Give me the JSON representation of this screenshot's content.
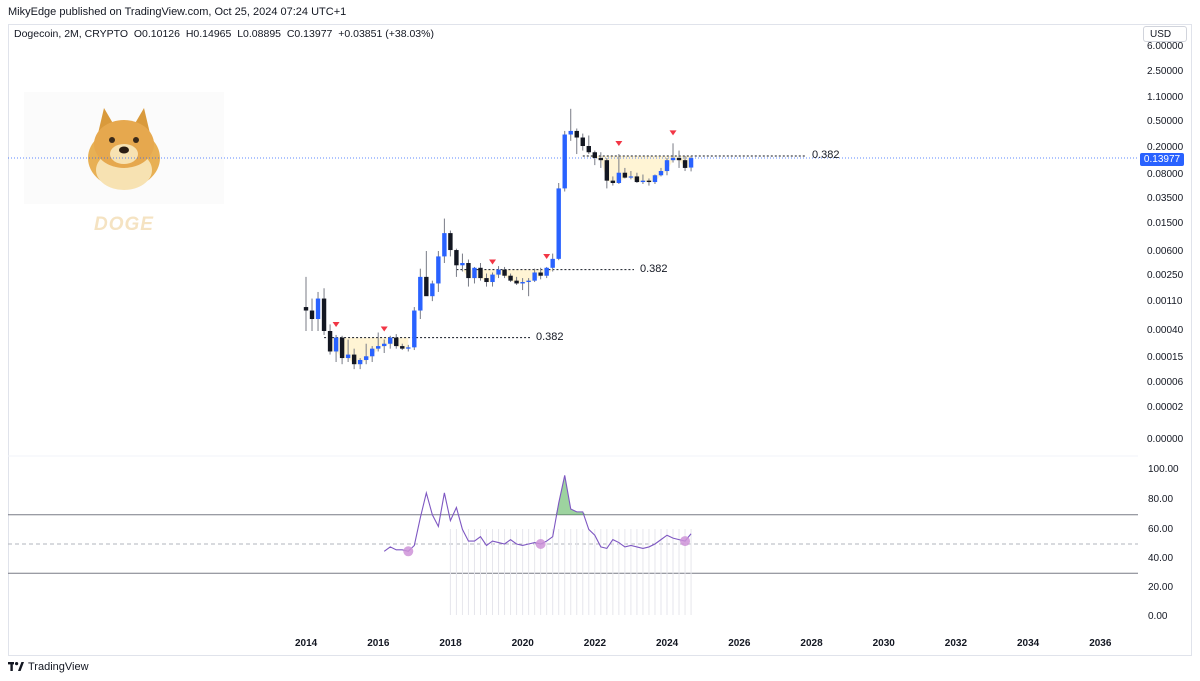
{
  "header": {
    "published": "MikyEdge published on TradingView.com, Oct 25, 2024 07:24 UTC+1"
  },
  "legend": {
    "symbol": "Dogecoin, 2M, CRYPTO",
    "open": "O0.10126",
    "high": "H0.14965",
    "low": "L0.08895",
    "close": "C0.13977",
    "change": "+0.03851 (+38.03%)"
  },
  "currency_button": "USD",
  "watermark": {
    "label": "DOGE"
  },
  "last_price_tag": "0.13977",
  "footer": {
    "brand": "TradingView"
  },
  "colors": {
    "up_candle": "#2962ff",
    "down_candle": "#131722",
    "fib_fill": "#fff2cc",
    "rsi_line": "#7e57c2",
    "marker": "#f23645",
    "circle": "#ce93d8",
    "overbought_fill": "#4caf50"
  },
  "chart_data": [
    {
      "type": "candlestick",
      "title": "",
      "scale": "log",
      "x_tick_labels": [
        "2014",
        "2016",
        "2018",
        "2020",
        "2022",
        "2024",
        "2026",
        "2028",
        "2030",
        "2032",
        "2034",
        "2036"
      ],
      "y_tick_labels": [
        "6.00000",
        "2.50000",
        "1.10000",
        "0.50000",
        "0.20000",
        "0.08000",
        "0.03500",
        "0.01500",
        "0.00600",
        "0.00250",
        "0.00110",
        "0.00040",
        "0.00015",
        "0.00006",
        "0.00002",
        "0.00000"
      ],
      "fib_levels": [
        {
          "label": "0.382",
          "value": 0.00032
        },
        {
          "label": "0.382",
          "value": 0.0032
        },
        {
          "label": "0.382",
          "value": 0.15
        }
      ],
      "candles": [
        [
          "2014-01",
          0.0009,
          0.0025,
          0.0004,
          0.0008
        ],
        [
          "2014-03",
          0.0008,
          0.0012,
          0.0004,
          0.0006
        ],
        [
          "2014-05",
          0.0006,
          0.0015,
          0.0004,
          0.0012
        ],
        [
          "2014-07",
          0.0012,
          0.0017,
          0.00035,
          0.0004
        ],
        [
          "2014-09",
          0.0004,
          0.0005,
          0.00018,
          0.0002
        ],
        [
          "2014-11",
          0.0002,
          0.00035,
          0.00014,
          0.00032
        ],
        [
          "2015-01",
          0.00032,
          0.00034,
          0.00013,
          0.00016
        ],
        [
          "2015-03",
          0.00016,
          0.0003,
          0.00014,
          0.00018
        ],
        [
          "2015-05",
          0.00018,
          0.00022,
          0.00011,
          0.00013
        ],
        [
          "2015-07",
          0.00013,
          0.00016,
          0.00011,
          0.00015
        ],
        [
          "2015-09",
          0.00015,
          0.00026,
          0.00013,
          0.00017
        ],
        [
          "2015-11",
          0.00017,
          0.00024,
          0.00014,
          0.00022
        ],
        [
          "2016-01",
          0.00022,
          0.00038,
          0.0002,
          0.00024
        ],
        [
          "2016-03",
          0.00024,
          0.0003,
          0.00019,
          0.00026
        ],
        [
          "2016-05",
          0.00026,
          0.00034,
          0.00022,
          0.00032
        ],
        [
          "2016-07",
          0.00032,
          0.00036,
          0.00022,
          0.00024
        ],
        [
          "2016-09",
          0.00024,
          0.00026,
          0.00021,
          0.00022
        ],
        [
          "2016-11",
          0.00022,
          0.00025,
          0.0002,
          0.00023
        ],
        [
          "2017-01",
          0.00023,
          0.0009,
          0.00021,
          0.0008
        ],
        [
          "2017-03",
          0.0008,
          0.0033,
          0.0006,
          0.0025
        ],
        [
          "2017-05",
          0.0025,
          0.006,
          0.002,
          0.0013
        ],
        [
          "2017-07",
          0.0013,
          0.0022,
          0.0011,
          0.002
        ],
        [
          "2017-09",
          0.002,
          0.006,
          0.0015,
          0.005
        ],
        [
          "2017-11",
          0.005,
          0.018,
          0.004,
          0.011
        ],
        [
          "2018-01",
          0.011,
          0.012,
          0.005,
          0.0062
        ],
        [
          "2018-03",
          0.0062,
          0.0065,
          0.0025,
          0.0037
        ],
        [
          "2018-05",
          0.0037,
          0.0055,
          0.003,
          0.004
        ],
        [
          "2018-07",
          0.004,
          0.0045,
          0.0018,
          0.0024
        ],
        [
          "2018-09",
          0.0024,
          0.0035,
          0.002,
          0.0034
        ],
        [
          "2018-11",
          0.0034,
          0.004,
          0.0022,
          0.0024
        ],
        [
          "2019-01",
          0.0024,
          0.0028,
          0.0018,
          0.0021
        ],
        [
          "2019-03",
          0.0021,
          0.0029,
          0.0018,
          0.0027
        ],
        [
          "2019-05",
          0.0027,
          0.0036,
          0.0024,
          0.0032
        ],
        [
          "2019-07",
          0.0032,
          0.0035,
          0.0024,
          0.0026
        ],
        [
          "2019-09",
          0.0026,
          0.0028,
          0.0021,
          0.0022
        ],
        [
          "2019-11",
          0.0022,
          0.0025,
          0.0019,
          0.002
        ],
        [
          "2020-01",
          0.002,
          0.0024,
          0.0016,
          0.0021
        ],
        [
          "2020-03",
          0.0021,
          0.0024,
          0.0013,
          0.0022
        ],
        [
          "2020-05",
          0.0022,
          0.0033,
          0.0021,
          0.0029
        ],
        [
          "2020-07",
          0.0029,
          0.0034,
          0.0023,
          0.0026
        ],
        [
          "2020-09",
          0.0026,
          0.0035,
          0.0024,
          0.0034
        ],
        [
          "2020-11",
          0.0034,
          0.0055,
          0.003,
          0.0046
        ],
        [
          "2021-01",
          0.0046,
          0.06,
          0.0044,
          0.05
        ],
        [
          "2021-03",
          0.05,
          0.35,
          0.045,
          0.31
        ],
        [
          "2021-05",
          0.31,
          0.74,
          0.25,
          0.35
        ],
        [
          "2021-07",
          0.35,
          0.38,
          0.16,
          0.28
        ],
        [
          "2021-09",
          0.28,
          0.32,
          0.18,
          0.21
        ],
        [
          "2021-11",
          0.21,
          0.3,
          0.16,
          0.17
        ],
        [
          "2022-01",
          0.17,
          0.18,
          0.11,
          0.14
        ],
        [
          "2022-03",
          0.14,
          0.17,
          0.1,
          0.13
        ],
        [
          "2022-05",
          0.13,
          0.14,
          0.05,
          0.065
        ],
        [
          "2022-07",
          0.065,
          0.075,
          0.055,
          0.06
        ],
        [
          "2022-09",
          0.06,
          0.16,
          0.058,
          0.085
        ],
        [
          "2022-11",
          0.085,
          0.1,
          0.07,
          0.072
        ],
        [
          "2023-01",
          0.072,
          0.09,
          0.068,
          0.075
        ],
        [
          "2023-03",
          0.075,
          0.085,
          0.06,
          0.062
        ],
        [
          "2023-05",
          0.062,
          0.08,
          0.058,
          0.065
        ],
        [
          "2023-07",
          0.065,
          0.07,
          0.055,
          0.062
        ],
        [
          "2023-09",
          0.062,
          0.08,
          0.058,
          0.078
        ],
        [
          "2023-11",
          0.078,
          0.1,
          0.075,
          0.09
        ],
        [
          "2024-01",
          0.09,
          0.14,
          0.078,
          0.13
        ],
        [
          "2024-03",
          0.13,
          0.23,
          0.12,
          0.14
        ],
        [
          "2024-05",
          0.14,
          0.18,
          0.1,
          0.13
        ],
        [
          "2024-07",
          0.13,
          0.15,
          0.09,
          0.1
        ],
        [
          "2024-09",
          0.10126,
          0.14965,
          0.08895,
          0.13977
        ]
      ],
      "markers": [
        "2014-11",
        "2016-03",
        "2019-03",
        "2020-09",
        "2022-09",
        "2024-03"
      ]
    },
    {
      "type": "line",
      "title": "",
      "y_tick_labels": [
        "100.00",
        "80.00",
        "60.00",
        "40.00",
        "20.00",
        "0.00"
      ],
      "ylim": [
        0,
        100
      ],
      "upper_band": 70,
      "middle_band": 50,
      "lower_band": 30,
      "series": [
        {
          "values": [
            [
              "2016-03",
              45
            ],
            [
              "2016-05",
              48
            ],
            [
              "2016-07",
              46
            ],
            [
              "2016-09",
              46
            ],
            [
              "2016-11",
              45
            ],
            [
              "2017-01",
              49
            ],
            [
              "2017-03",
              68
            ],
            [
              "2017-05",
              85
            ],
            [
              "2017-07",
              70
            ],
            [
              "2017-09",
              62
            ],
            [
              "2017-11",
              85
            ],
            [
              "2018-01",
              66
            ],
            [
              "2018-03",
              75
            ],
            [
              "2018-05",
              60
            ],
            [
              "2018-07",
              52
            ],
            [
              "2018-09",
              52
            ],
            [
              "2018-11",
              55
            ],
            [
              "2019-01",
              49
            ],
            [
              "2019-03",
              52
            ],
            [
              "2019-05",
              51
            ],
            [
              "2019-07",
              50
            ],
            [
              "2019-09",
              53
            ],
            [
              "2019-11",
              50
            ],
            [
              "2020-01",
              49
            ],
            [
              "2020-03",
              50
            ],
            [
              "2020-05",
              51
            ],
            [
              "2020-07",
              50
            ],
            [
              "2020-09",
              52
            ],
            [
              "2020-11",
              55
            ],
            [
              "2021-01",
              78
            ],
            [
              "2021-03",
              97
            ],
            [
              "2021-05",
              74
            ],
            [
              "2021-07",
              72
            ],
            [
              "2021-09",
              72
            ],
            [
              "2021-11",
              60
            ],
            [
              "2022-01",
              56
            ],
            [
              "2022-03",
              48
            ],
            [
              "2022-05",
              47
            ],
            [
              "2022-07",
              53
            ],
            [
              "2022-09",
              51
            ],
            [
              "2022-11",
              48
            ],
            [
              "2023-01",
              49
            ],
            [
              "2023-03",
              48
            ],
            [
              "2023-05",
              47
            ],
            [
              "2023-07",
              48
            ],
            [
              "2023-09",
              50
            ],
            [
              "2023-11",
              53
            ],
            [
              "2024-01",
              56
            ],
            [
              "2024-03",
              54
            ],
            [
              "2024-05",
              53
            ],
            [
              "2024-07",
              52
            ],
            [
              "2024-09",
              57
            ]
          ]
        }
      ],
      "circles": [
        "2016-11",
        "2020-07",
        "2024-07"
      ]
    }
  ]
}
